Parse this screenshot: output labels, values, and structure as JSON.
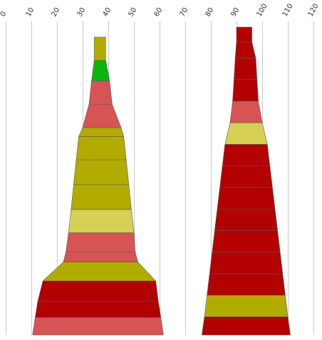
{
  "chart_data": {
    "type": "bar",
    "subtype": "stacked-funnel",
    "orientation": "vertical-funnel",
    "title": "",
    "xlabel": "",
    "ylabel": "",
    "x_axis": {
      "range": [
        0,
        120
      ],
      "ticks": [
        0,
        10,
        20,
        30,
        40,
        50,
        60,
        70,
        80,
        90,
        100,
        110,
        120
      ],
      "tick_labels": [
        "0",
        "10",
        "20",
        "30",
        "40",
        "50",
        "60",
        "70",
        "80",
        "90",
        "100",
        "110",
        "120"
      ],
      "tick_label_rotation": "diagonal",
      "position": "top",
      "grid": true
    },
    "colors": {
      "red": "#b30000",
      "light_red": "#d65454",
      "olive": "#b3ac00",
      "light_olive": "#d6d054",
      "green": "#0fb30f"
    },
    "columns": [
      {
        "center": 36.5,
        "segments": [
          {
            "left": 10.5,
            "right": 61.5,
            "color": "light_red"
          },
          {
            "left": 11.5,
            "right": 60.5,
            "color": "red"
          },
          {
            "left": 12.5,
            "right": 59.5,
            "color": "red"
          },
          {
            "left": 14.5,
            "right": 58.5,
            "color": "olive"
          },
          {
            "left": 22.5,
            "right": 51.5,
            "color": "light_red"
          },
          {
            "left": 23.5,
            "right": 50.5,
            "color": "light_red"
          },
          {
            "left": 24.5,
            "right": 50.0,
            "color": "light_olive"
          },
          {
            "left": 25.5,
            "right": 49.0,
            "color": "olive"
          },
          {
            "left": 26.5,
            "right": 48.0,
            "color": "olive"
          },
          {
            "left": 27.5,
            "right": 47.0,
            "color": "olive"
          },
          {
            "left": 28.5,
            "right": 46.0,
            "color": "olive"
          },
          {
            "left": 30.0,
            "right": 45.0,
            "color": "light_red"
          },
          {
            "left": 32.5,
            "right": 41.5,
            "color": "light_red"
          },
          {
            "left": 33.5,
            "right": 40.5,
            "color": "green"
          },
          {
            "left": 34.5,
            "right": 39.0,
            "color": "olive"
          }
        ]
      },
      {
        "center": 93.0,
        "segments": [
          {
            "left": 76.5,
            "right": 111.0,
            "color": "red"
          },
          {
            "left": 77.5,
            "right": 110.0,
            "color": "olive"
          },
          {
            "left": 78.5,
            "right": 109.0,
            "color": "red"
          },
          {
            "left": 79.5,
            "right": 108.0,
            "color": "red"
          },
          {
            "left": 80.5,
            "right": 107.0,
            "color": "red"
          },
          {
            "left": 81.5,
            "right": 106.0,
            "color": "red"
          },
          {
            "left": 82.5,
            "right": 105.0,
            "color": "red"
          },
          {
            "left": 83.5,
            "right": 104.0,
            "color": "red"
          },
          {
            "left": 84.5,
            "right": 103.0,
            "color": "red"
          },
          {
            "left": 85.5,
            "right": 102.0,
            "color": "light_olive"
          },
          {
            "left": 87.5,
            "right": 100.0,
            "color": "light_red"
          },
          {
            "left": 88.5,
            "right": 98.5,
            "color": "red"
          },
          {
            "left": 89.0,
            "right": 98.0,
            "color": "red"
          },
          {
            "left": 89.5,
            "right": 97.5,
            "color": "red"
          },
          {
            "left": 90.0,
            "right": 96.0,
            "color": "red"
          }
        ]
      }
    ]
  }
}
